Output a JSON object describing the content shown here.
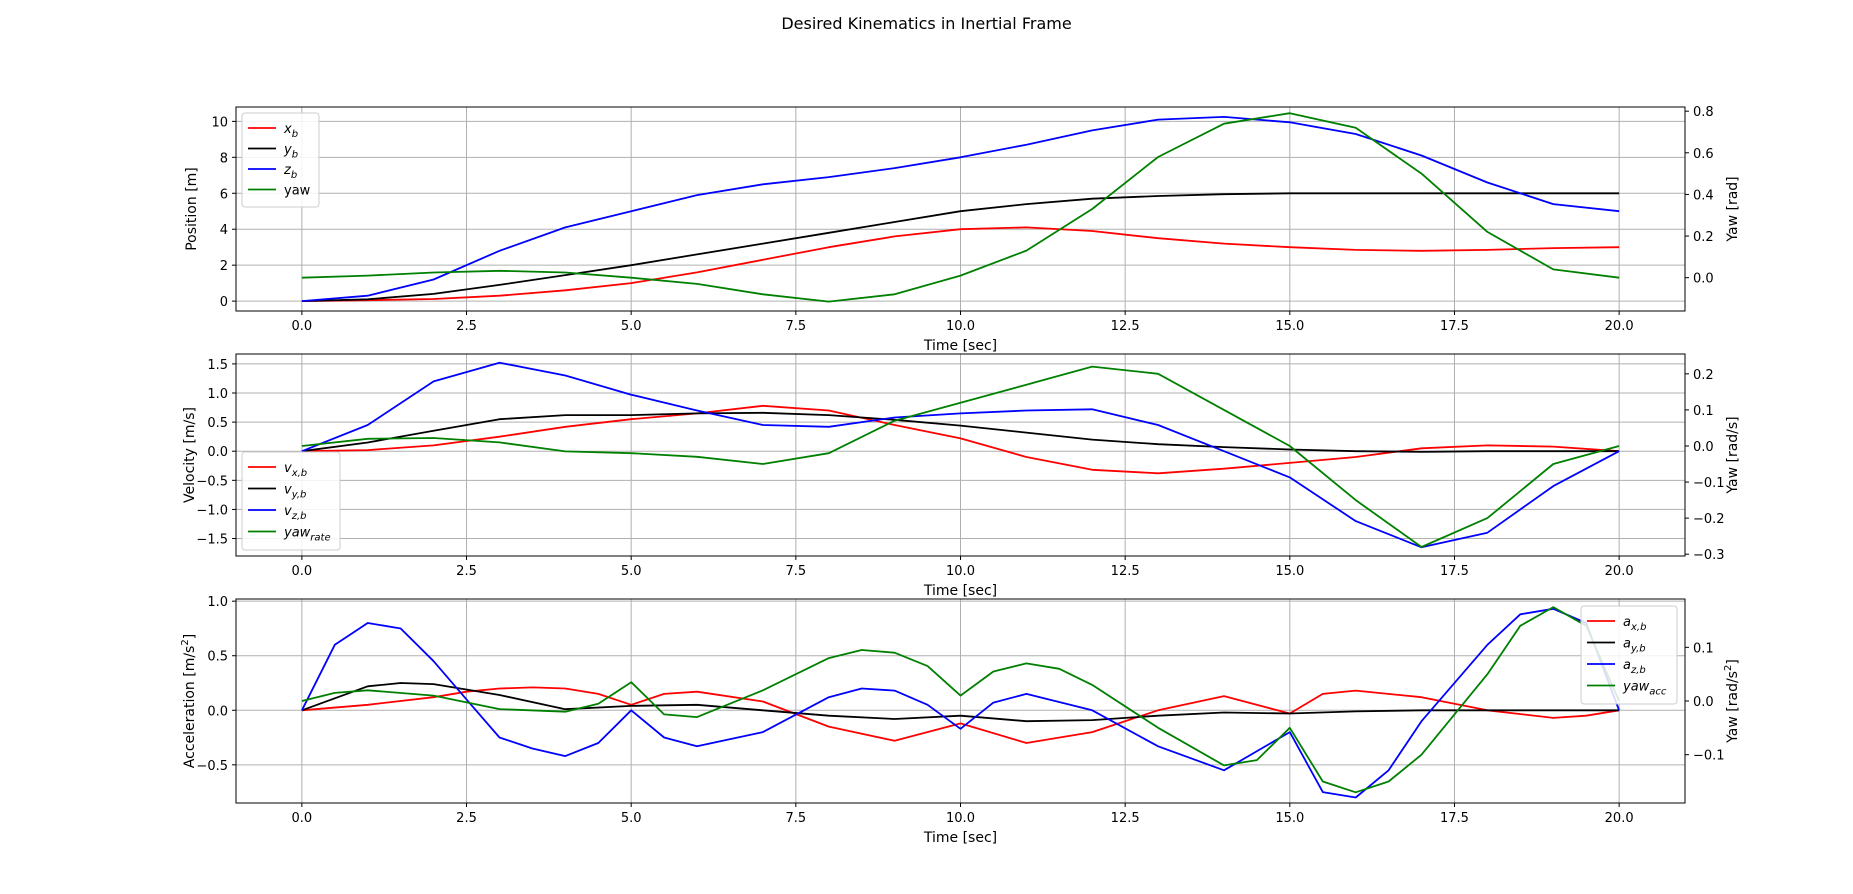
{
  "figure": {
    "title": "Desired Kinematics in Inertial Frame"
  },
  "chart_data": [
    {
      "type": "line",
      "name": "position",
      "xlabel": "Time [sec]",
      "ylabel": "Position [m]",
      "ylabel2": "Yaw [rad]",
      "xlim": [
        -1,
        21
      ],
      "ylim": [
        -0.55,
        10.8
      ],
      "ylim2": [
        -0.16,
        0.82
      ],
      "xticks": [
        0.0,
        2.5,
        5.0,
        7.5,
        10.0,
        12.5,
        15.0,
        17.5,
        20.0
      ],
      "xtick_labels": [
        "0.0",
        "2.5",
        "5.0",
        "7.5",
        "10.0",
        "12.5",
        "15.0",
        "17.5",
        "20.0"
      ],
      "yticks": [
        0,
        2,
        4,
        6,
        8,
        10
      ],
      "ytick_labels": [
        "0",
        "2",
        "4",
        "6",
        "8",
        "10"
      ],
      "yticks2": [
        0.0,
        0.2,
        0.4,
        0.6,
        0.8
      ],
      "ytick_labels2": [
        "0.0",
        "0.2",
        "0.4",
        "0.6",
        "0.8"
      ],
      "grid": true,
      "legend_placement": "upper-left",
      "series": [
        {
          "name": "x",
          "sub": "b",
          "color": "#ff0000",
          "axis": "left",
          "x": [
            0,
            1,
            2,
            3,
            4,
            5,
            6,
            7,
            8,
            9,
            10,
            11,
            12,
            13,
            14,
            15,
            16,
            17,
            18,
            19,
            20
          ],
          "y": [
            0,
            0.05,
            0.12,
            0.3,
            0.6,
            1.0,
            1.6,
            2.3,
            3.0,
            3.6,
            4.0,
            4.1,
            3.9,
            3.5,
            3.2,
            3.0,
            2.85,
            2.8,
            2.85,
            2.95,
            3.0
          ]
        },
        {
          "name": "y",
          "sub": "b",
          "color": "#000000",
          "axis": "left",
          "x": [
            0,
            1,
            2,
            3,
            4,
            5,
            6,
            7,
            8,
            9,
            10,
            11,
            12,
            13,
            14,
            15,
            16,
            17,
            18,
            19,
            20
          ],
          "y": [
            0,
            0.1,
            0.4,
            0.9,
            1.45,
            2.0,
            2.6,
            3.2,
            3.8,
            4.4,
            5.0,
            5.4,
            5.7,
            5.85,
            5.95,
            6.0,
            6.0,
            6.0,
            6.0,
            6.0,
            6.0
          ]
        },
        {
          "name": "z",
          "sub": "b",
          "color": "#0000ff",
          "axis": "left",
          "x": [
            0,
            1,
            2,
            3,
            4,
            5,
            6,
            7,
            8,
            9,
            10,
            11,
            12,
            13,
            14,
            15,
            16,
            17,
            18,
            19,
            20
          ],
          "y": [
            0,
            0.3,
            1.2,
            2.8,
            4.1,
            5.0,
            5.9,
            6.5,
            6.9,
            7.4,
            8.0,
            8.7,
            9.5,
            10.1,
            10.25,
            9.95,
            9.3,
            8.1,
            6.6,
            5.4,
            5.0
          ]
        },
        {
          "name": "yaw",
          "sub": "",
          "color": "#008000",
          "axis": "right",
          "x": [
            0,
            1,
            2,
            3,
            4,
            5,
            6,
            7,
            8,
            9,
            10,
            11,
            12,
            13,
            14,
            15,
            16,
            17,
            18,
            19,
            20
          ],
          "y": [
            0.0,
            0.01,
            0.025,
            0.033,
            0.025,
            0.0,
            -0.03,
            -0.08,
            -0.115,
            -0.08,
            0.01,
            0.13,
            0.33,
            0.58,
            0.74,
            0.79,
            0.72,
            0.5,
            0.22,
            0.04,
            0.0
          ]
        }
      ]
    },
    {
      "type": "line",
      "name": "velocity",
      "xlabel": "Time [sec]",
      "ylabel": "Velocity [m/s]",
      "ylabel2": "Yaw [rad/s]",
      "xlim": [
        -1,
        21
      ],
      "ylim": [
        -1.8,
        1.67
      ],
      "ylim2": [
        -0.305,
        0.255
      ],
      "xticks": [
        0.0,
        2.5,
        5.0,
        7.5,
        10.0,
        12.5,
        15.0,
        17.5,
        20.0
      ],
      "xtick_labels": [
        "0.0",
        "2.5",
        "5.0",
        "7.5",
        "10.0",
        "12.5",
        "15.0",
        "17.5",
        "20.0"
      ],
      "yticks": [
        -1.5,
        -1.0,
        -0.5,
        0.0,
        0.5,
        1.0,
        1.5
      ],
      "ytick_labels": [
        "−1.5",
        "−1.0",
        "−0.5",
        "0.0",
        "0.5",
        "1.0",
        "1.5"
      ],
      "yticks2": [
        -0.3,
        -0.2,
        -0.1,
        0.0,
        0.1,
        0.2
      ],
      "ytick_labels2": [
        "−0.3",
        "−0.2",
        "−0.1",
        "0.0",
        "0.1",
        "0.2"
      ],
      "grid": true,
      "legend_placement": "lower-left",
      "series": [
        {
          "name": "v",
          "sub": "x,b",
          "color": "#ff0000",
          "axis": "left",
          "x": [
            0,
            1,
            2,
            3,
            4,
            5,
            6,
            7,
            8,
            9,
            10,
            11,
            12,
            13,
            14,
            15,
            16,
            17,
            18,
            19,
            20
          ],
          "y": [
            0,
            0.02,
            0.1,
            0.25,
            0.42,
            0.55,
            0.65,
            0.78,
            0.7,
            0.45,
            0.22,
            -0.1,
            -0.32,
            -0.38,
            -0.3,
            -0.2,
            -0.1,
            0.05,
            0.1,
            0.08,
            0.0
          ]
        },
        {
          "name": "v",
          "sub": "y,b",
          "color": "#000000",
          "axis": "left",
          "x": [
            0,
            1,
            2,
            3,
            4,
            5,
            6,
            7,
            8,
            9,
            10,
            11,
            12,
            13,
            14,
            15,
            16,
            17,
            18,
            19,
            20
          ],
          "y": [
            0,
            0.15,
            0.35,
            0.55,
            0.62,
            0.62,
            0.65,
            0.66,
            0.62,
            0.54,
            0.44,
            0.32,
            0.2,
            0.12,
            0.07,
            0.03,
            0.0,
            -0.01,
            0.0,
            0.0,
            0.0
          ]
        },
        {
          "name": "v",
          "sub": "z,b",
          "color": "#0000ff",
          "axis": "left",
          "x": [
            0,
            1,
            2,
            3,
            4,
            5,
            6,
            7,
            8,
            9,
            10,
            11,
            12,
            13,
            14,
            15,
            16,
            17,
            18,
            19,
            20
          ],
          "y": [
            0,
            0.45,
            1.2,
            1.52,
            1.3,
            0.97,
            0.7,
            0.45,
            0.42,
            0.58,
            0.65,
            0.7,
            0.72,
            0.45,
            0.0,
            -0.45,
            -1.2,
            -1.65,
            -1.4,
            -0.6,
            0.0
          ]
        },
        {
          "name": "yaw",
          "sub": "rate",
          "color": "#008000",
          "axis": "right",
          "x": [
            0,
            1,
            2,
            3,
            4,
            5,
            6,
            7,
            8,
            9,
            10,
            11,
            12,
            13,
            14,
            15,
            16,
            17,
            18,
            19,
            20
          ],
          "y": [
            0.0,
            0.02,
            0.022,
            0.01,
            -0.015,
            -0.02,
            -0.03,
            -0.05,
            -0.02,
            0.07,
            0.12,
            0.17,
            0.22,
            0.2,
            0.1,
            0.0,
            -0.15,
            -0.28,
            -0.2,
            -0.05,
            0.0
          ]
        }
      ]
    },
    {
      "type": "line",
      "name": "acceleration",
      "xlabel": "Time [sec]",
      "ylabel": "Acceleration [m/s^2]",
      "ylabel2": "Yaw [rad/s^2]",
      "xlim": [
        -1,
        21
      ],
      "ylim": [
        -0.85,
        1.02
      ],
      "ylim2": [
        -0.19,
        0.19
      ],
      "xticks": [
        0.0,
        2.5,
        5.0,
        7.5,
        10.0,
        12.5,
        15.0,
        17.5,
        20.0
      ],
      "xtick_labels": [
        "0.0",
        "2.5",
        "5.0",
        "7.5",
        "10.0",
        "12.5",
        "15.0",
        "17.5",
        "20.0"
      ],
      "yticks": [
        -0.5,
        0.0,
        0.5,
        1.0
      ],
      "ytick_labels": [
        "−0.5",
        "0.0",
        "0.5",
        "1.0"
      ],
      "yticks2": [
        -0.1,
        0.0,
        0.1
      ],
      "ytick_labels2": [
        "−0.1",
        "0.0",
        "0.1"
      ],
      "grid": true,
      "legend_placement": "upper-right",
      "series": [
        {
          "name": "a",
          "sub": "x,b",
          "color": "#ff0000",
          "axis": "left",
          "x": [
            0,
            1,
            2,
            2.5,
            3,
            3.5,
            4,
            4.5,
            5,
            5.5,
            6,
            7,
            8,
            9,
            10,
            11,
            12,
            13,
            14,
            15,
            15.5,
            16,
            17,
            18,
            19,
            19.5,
            20
          ],
          "y": [
            0,
            0.05,
            0.12,
            0.17,
            0.2,
            0.21,
            0.2,
            0.15,
            0.05,
            0.15,
            0.17,
            0.08,
            -0.15,
            -0.28,
            -0.12,
            -0.3,
            -0.2,
            0.0,
            0.13,
            -0.03,
            0.15,
            0.18,
            0.12,
            0.0,
            -0.07,
            -0.05,
            0.0
          ]
        },
        {
          "name": "a",
          "sub": "y,b",
          "color": "#000000",
          "axis": "left",
          "x": [
            0,
            1,
            1.5,
            2,
            3,
            4,
            5,
            6,
            7,
            8,
            9,
            10,
            11,
            12,
            13,
            14,
            15,
            16,
            17,
            18,
            19,
            20
          ],
          "y": [
            0,
            0.22,
            0.25,
            0.24,
            0.14,
            0.01,
            0.04,
            0.05,
            0.0,
            -0.05,
            -0.08,
            -0.05,
            -0.1,
            -0.09,
            -0.05,
            -0.02,
            -0.03,
            -0.01,
            0.0,
            0.0,
            0.0,
            0.0
          ]
        },
        {
          "name": "a",
          "sub": "z,b",
          "color": "#0000ff",
          "axis": "left",
          "x": [
            0,
            0.5,
            1,
            1.5,
            2,
            2.5,
            3,
            3.5,
            4,
            4.5,
            5,
            5.5,
            6,
            7,
            8,
            8.5,
            9,
            9.5,
            10,
            10.5,
            11,
            12,
            13,
            14,
            15,
            15.5,
            16,
            16.5,
            17,
            18,
            18.5,
            19,
            19.5,
            20
          ],
          "y": [
            0,
            0.6,
            0.8,
            0.75,
            0.45,
            0.1,
            -0.25,
            -0.35,
            -0.42,
            -0.3,
            0.0,
            -0.25,
            -0.33,
            -0.2,
            0.12,
            0.2,
            0.18,
            0.05,
            -0.17,
            0.07,
            0.15,
            0.0,
            -0.33,
            -0.55,
            -0.2,
            -0.75,
            -0.8,
            -0.55,
            -0.1,
            0.6,
            0.88,
            0.93,
            0.8,
            0.0
          ]
        },
        {
          "name": "yaw",
          "sub": "acc",
          "color": "#008000",
          "axis": "right",
          "x": [
            0,
            0.5,
            1,
            2,
            3,
            4,
            4.5,
            5,
            5.5,
            6,
            7,
            8,
            8.5,
            9,
            9.5,
            10,
            10.5,
            11,
            11.5,
            12,
            13,
            14,
            14.5,
            15,
            15.5,
            16,
            16.5,
            17,
            18,
            18.5,
            19,
            19.5,
            20
          ],
          "y": [
            0.0,
            0.015,
            0.02,
            0.01,
            -0.015,
            -0.02,
            -0.005,
            0.035,
            -0.025,
            -0.03,
            0.02,
            0.08,
            0.095,
            0.09,
            0.065,
            0.01,
            0.055,
            0.07,
            0.06,
            0.03,
            -0.05,
            -0.12,
            -0.11,
            -0.05,
            -0.15,
            -0.17,
            -0.15,
            -0.1,
            0.05,
            0.14,
            0.175,
            0.14,
            0.0
          ]
        }
      ]
    }
  ]
}
